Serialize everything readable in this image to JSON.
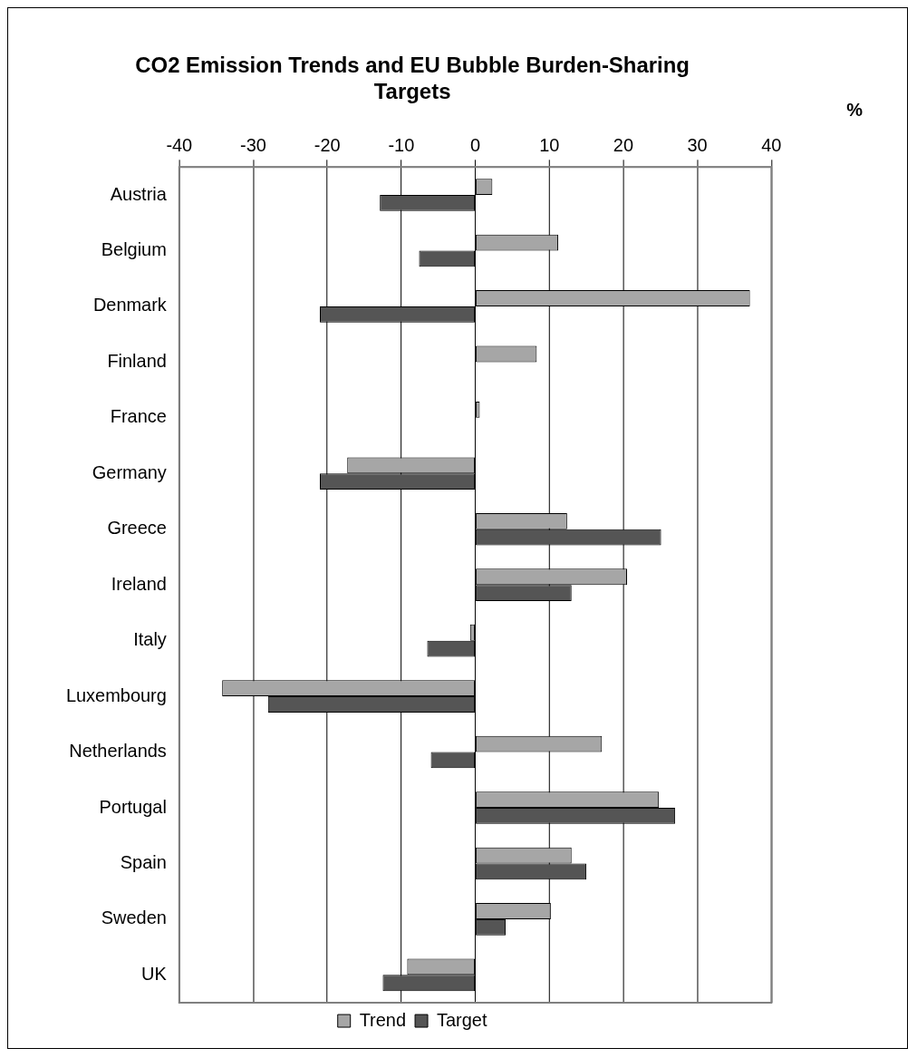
{
  "chart_data": {
    "type": "bar",
    "orientation": "horizontal",
    "title": "CO2 Emission Trends and EU Bubble Burden-Sharing Targets",
    "xlabel": "%",
    "categories": [
      "Austria",
      "Belgium",
      "Denmark",
      "Finland",
      "France",
      "Germany",
      "Greece",
      "Ireland",
      "Italy",
      "Luxembourg",
      "Netherlands",
      "Portugal",
      "Spain",
      "Sweden",
      "UK"
    ],
    "series": [
      {
        "name": "Trend",
        "color": "#a6a6a6",
        "values": [
          2.3,
          11.2,
          37.1,
          8.3,
          0.6,
          -17.3,
          12.4,
          20.5,
          -0.7,
          -34.2,
          17.1,
          24.8,
          13.0,
          10.2,
          -9.2
        ]
      },
      {
        "name": "Target",
        "color": "#555555",
        "values": [
          -12.9,
          -7.6,
          -21.0,
          0,
          0,
          -21.0,
          25.1,
          13.0,
          -6.5,
          -28.0,
          -6.0,
          27.0,
          15.0,
          4.1,
          -12.5
        ]
      }
    ],
    "xlim": [
      -40,
      40
    ],
    "xticks": [
      -40,
      -30,
      -20,
      -10,
      0,
      10,
      20,
      30,
      40
    ],
    "grid": "x",
    "legend": "bottom"
  }
}
